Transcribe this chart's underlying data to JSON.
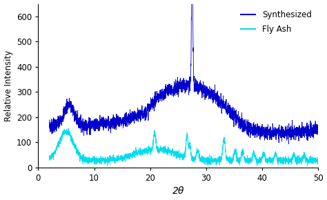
{
  "title": "",
  "xlabel": "2θ",
  "ylabel": "Relative Intensity",
  "xlim": [
    0,
    50
  ],
  "ylim": [
    0,
    650
  ],
  "yticks": [
    0,
    100,
    200,
    300,
    400,
    500,
    600
  ],
  "xticks": [
    0,
    10,
    20,
    30,
    40,
    50
  ],
  "synthesized_color": "#0000CC",
  "flyash_color": "#00DDEE",
  "legend_labels": [
    "Synthesized",
    "Fly Ash"
  ],
  "background_color": "#ffffff",
  "seed": 7
}
